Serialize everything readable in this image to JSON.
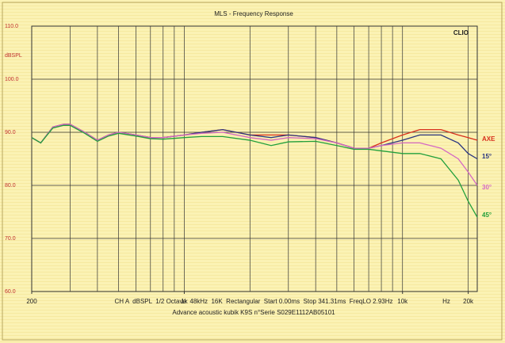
{
  "chart_data": {
    "type": "line",
    "title": "MLS - Frequency Response",
    "brand": "CLIO",
    "ylabel": "dBSPL",
    "xlabel": "Hz",
    "settings_line": "CH A  dBSPL  1/2 Octave  48kHz  16K  Rectangular  Start 0.00ms  Stop 341.31ms  FreqLO 2.93Hz",
    "caption": "Advance acoustic kubik K9S n°Serie S029E1112AB05101",
    "xscale": "log",
    "grid": true,
    "xlim": [
      200,
      22000
    ],
    "ylim": [
      60,
      110
    ],
    "xticks": [
      200,
      {
        "value": 1000,
        "label": "1k"
      },
      {
        "value": 10000,
        "label": "10k"
      },
      {
        "value": 20000,
        "label": "20k"
      }
    ],
    "xgrid": [
      200,
      300,
      400,
      500,
      600,
      700,
      800,
      900,
      1000,
      2000,
      3000,
      4000,
      5000,
      6000,
      7000,
      8000,
      9000,
      10000,
      20000
    ],
    "yticks": [
      {
        "value": 60,
        "label": "60.0"
      },
      {
        "value": 70,
        "label": "70.0"
      },
      {
        "value": 80,
        "label": "80.0"
      },
      {
        "value": 90,
        "label": "90.0"
      },
      {
        "value": 100,
        "label": "100.0"
      },
      {
        "value": 110,
        "label": "110.0"
      }
    ],
    "x": [
      200,
      220,
      250,
      280,
      300,
      350,
      400,
      450,
      500,
      600,
      700,
      800,
      1000,
      1200,
      1500,
      2000,
      2500,
      3000,
      4000,
      5000,
      6000,
      7000,
      8000,
      10000,
      12000,
      15000,
      18000,
      20000,
      22000
    ],
    "series": [
      {
        "name": "AXE",
        "color": "#d8301c",
        "values": [
          89,
          88,
          91,
          91.5,
          91.5,
          90,
          88.5,
          89.5,
          90,
          89.5,
          89,
          89,
          89.5,
          90,
          90.5,
          89.5,
          89.5,
          89.5,
          89,
          88,
          87,
          87,
          88,
          89.5,
          90.5,
          90.5,
          89.5,
          89,
          88.5
        ]
      },
      {
        "name": "15°",
        "color": "#2a3580",
        "values": [
          89,
          88,
          91,
          91.5,
          91.5,
          90,
          88.5,
          89.5,
          90,
          89.5,
          89,
          89,
          89.5,
          90,
          90.5,
          89.5,
          89,
          89.5,
          89,
          88,
          87,
          87,
          87.5,
          88.5,
          89.5,
          89.5,
          88,
          86,
          85
        ]
      },
      {
        "name": "30°",
        "color": "#d468c4",
        "values": [
          89,
          88,
          91,
          91.5,
          91.5,
          90,
          88.5,
          89.5,
          90,
          89.5,
          89,
          89,
          89.5,
          89.8,
          90,
          89,
          88.5,
          89,
          88.8,
          88,
          87,
          87,
          87.5,
          88,
          88,
          87,
          85,
          82.5,
          80
        ]
      },
      {
        "name": "45°",
        "color": "#22a03c",
        "values": [
          89,
          88,
          90.8,
          91.3,
          91.3,
          89.8,
          88.3,
          89.3,
          89.8,
          89.3,
          88.8,
          88.7,
          89,
          89.2,
          89.2,
          88.5,
          87.5,
          88.2,
          88.3,
          87.5,
          86.8,
          86.8,
          86.5,
          86,
          86,
          85,
          81,
          77,
          74
        ]
      }
    ]
  }
}
